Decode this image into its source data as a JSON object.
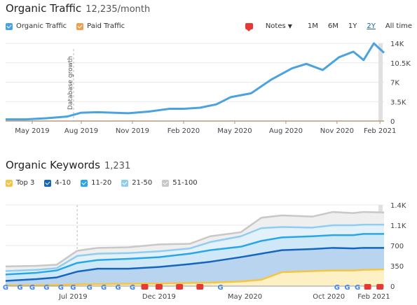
{
  "colors": {
    "organic": "#4aa3df",
    "paid": "#f0a04b",
    "top3": "#f5c542",
    "r4_10": "#1565c0",
    "r11_20": "#29a6e8",
    "r21_50": "#90cdf0",
    "r51_100": "#c8c8c8",
    "note": "#e53935"
  },
  "traffic": {
    "title": "Organic Traffic",
    "subtitle": "12,235/month",
    "legend": [
      {
        "label": "Organic Traffic",
        "color": "#4aa3df"
      },
      {
        "label": "Paid Traffic",
        "color": "#f0a04b"
      }
    ],
    "notes_label": "Notes",
    "ranges": [
      "1M",
      "6M",
      "1Y",
      "2Y",
      "All time"
    ],
    "active_range": "2Y",
    "annotation": "Database growth"
  },
  "keywords": {
    "title": "Organic Keywords",
    "subtitle": "1,231",
    "legend": [
      {
        "label": "Top 3",
        "color": "#f5c542"
      },
      {
        "label": "4-10",
        "color": "#1565c0"
      },
      {
        "label": "11-20",
        "color": "#29a6e8"
      },
      {
        "label": "21-50",
        "color": "#90cdf0"
      },
      {
        "label": "51-100",
        "color": "#c8c8c8"
      }
    ]
  },
  "chart_data": [
    {
      "type": "line",
      "title": "Organic Traffic",
      "x_ticks": [
        "May 2019",
        "Aug 2019",
        "Nov 2019",
        "Feb 2020",
        "May 2020",
        "Aug 2020",
        "Nov 2020",
        "Feb 2021"
      ],
      "y_ticks": [
        "14K",
        "10.5K",
        "7K",
        "3.5K",
        "0"
      ],
      "ylim": [
        0,
        14000
      ],
      "grid": true,
      "series": [
        {
          "name": "Organic Traffic",
          "x": [
            2019.25,
            2019.35,
            2019.45,
            2019.55,
            2019.62,
            2019.7,
            2019.85,
            2019.95,
            2020.05,
            2020.12,
            2020.2,
            2020.28,
            2020.35,
            2020.45,
            2020.55,
            2020.65,
            2020.72,
            2020.8,
            2020.88,
            2020.95,
            2021.0,
            2021.05,
            2021.1
          ],
          "values": [
            300,
            300,
            500,
            800,
            1500,
            1600,
            1400,
            1700,
            2200,
            2200,
            2400,
            3000,
            4300,
            5000,
            7500,
            9500,
            10300,
            9200,
            11500,
            12500,
            11000,
            14000,
            12300
          ]
        },
        {
          "name": "Paid Traffic",
          "x": [
            2019.25,
            2021.1
          ],
          "values": [
            0,
            0
          ]
        }
      ]
    },
    {
      "type": "area",
      "title": "Organic Keywords",
      "x_ticks": [
        "Jul 2019",
        "Dec 2019",
        "May 2020",
        "Oct 2020",
        "Feb 2021"
      ],
      "y_ticks": [
        "1.4K",
        "1.1K",
        "700",
        "350",
        "0"
      ],
      "ylim": [
        0,
        1400
      ],
      "grid": true,
      "stacked": true,
      "x": [
        2019.25,
        2019.4,
        2019.5,
        2019.6,
        2019.7,
        2019.85,
        2020.0,
        2020.15,
        2020.25,
        2020.4,
        2020.5,
        2020.6,
        2020.75,
        2020.85,
        2020.95,
        2021.0,
        2021.1
      ],
      "series": [
        {
          "name": "Top 3",
          "values": [
            10,
            15,
            20,
            30,
            35,
            40,
            45,
            55,
            60,
            80,
            110,
            240,
            260,
            270,
            270,
            280,
            290
          ]
        },
        {
          "name": "4-10",
          "values": [
            90,
            120,
            150,
            250,
            300,
            300,
            330,
            380,
            420,
            500,
            560,
            620,
            640,
            660,
            650,
            660,
            660
          ]
        },
        {
          "name": "11-20",
          "values": [
            200,
            230,
            270,
            400,
            450,
            470,
            500,
            560,
            620,
            680,
            780,
            840,
            860,
            880,
            880,
            900,
            900
          ]
        },
        {
          "name": "21-50",
          "values": [
            260,
            280,
            310,
            520,
            560,
            570,
            600,
            650,
            760,
            860,
            1000,
            1020,
            1010,
            1050,
            1050,
            1060,
            1060
          ]
        },
        {
          "name": "51-100",
          "values": [
            340,
            350,
            370,
            610,
            660,
            670,
            720,
            730,
            860,
            930,
            1180,
            1220,
            1200,
            1280,
            1260,
            1280,
            1270
          ]
        }
      ]
    }
  ]
}
